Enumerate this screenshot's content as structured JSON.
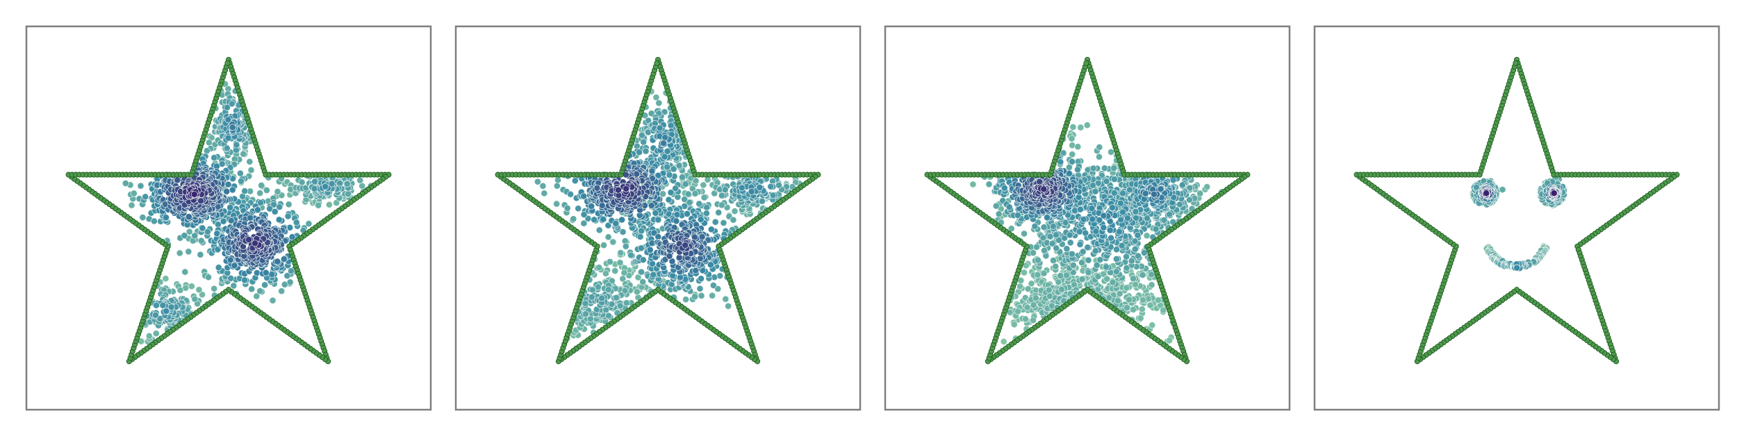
{
  "figure": {
    "panel_count": 4
  },
  "colors": {
    "boundary_fill": "#4f9a4f",
    "boundary_edge": "#1d5a1d",
    "frame": "#7f7f7f",
    "density_low": "#8fd0a6",
    "density_mid": "#3a8aa6",
    "density_high": "#3b1f6e"
  },
  "chart_data": [
    {
      "type": "scatter",
      "title": "",
      "xlabel": "",
      "ylabel": "",
      "xlim": [
        -1.2,
        1.2
      ],
      "ylim": [
        -1.1,
        1.2
      ],
      "grid": false,
      "legend": "none",
      "boundary": {
        "name": "",
        "shape": "five-pointed star",
        "vertices": [
          [
            0,
            1
          ],
          [
            0.22,
            0.31
          ],
          [
            0.95,
            0.31
          ],
          [
            0.36,
            -0.12
          ],
          [
            0.59,
            -0.81
          ],
          [
            0,
            -0.38
          ],
          [
            -0.59,
            -0.81
          ],
          [
            -0.36,
            -0.12
          ],
          [
            -0.95,
            0.31
          ],
          [
            -0.22,
            0.31
          ]
        ]
      },
      "series": [
        {
          "name": "",
          "clusters": [
            {
              "center": [
                -0.21,
                0.2
              ],
              "spread": [
                0.15,
                0.12
              ],
              "count": 460,
              "density": 0.95
            },
            {
              "center": [
                0.16,
                -0.1
              ],
              "spread": [
                0.15,
                0.13
              ],
              "count": 460,
              "density": 0.9
            },
            {
              "center": [
                0.02,
                0.6
              ],
              "spread": [
                0.06,
                0.12
              ],
              "count": 150,
              "density": 0.55
            },
            {
              "center": [
                0.58,
                0.24
              ],
              "spread": [
                0.12,
                0.05
              ],
              "count": 130,
              "density": 0.45
            },
            {
              "center": [
                -0.38,
                -0.5
              ],
              "spread": [
                0.12,
                0.08
              ],
              "count": 140,
              "density": 0.45
            }
          ]
        }
      ]
    },
    {
      "type": "scatter",
      "title": "",
      "xlabel": "",
      "ylabel": "",
      "xlim": [
        -1.2,
        1.2
      ],
      "ylim": [
        -1.1,
        1.2
      ],
      "grid": false,
      "legend": "none",
      "boundary": {
        "name": "",
        "shape": "five-pointed star",
        "vertices": [
          [
            0,
            1
          ],
          [
            0.22,
            0.31
          ],
          [
            0.95,
            0.31
          ],
          [
            0.36,
            -0.12
          ],
          [
            0.59,
            -0.81
          ],
          [
            0,
            -0.38
          ],
          [
            -0.59,
            -0.81
          ],
          [
            -0.36,
            -0.12
          ],
          [
            -0.95,
            0.31
          ],
          [
            -0.22,
            0.31
          ]
        ]
      },
      "series": [
        {
          "name": "",
          "clusters": [
            {
              "center": [
                -0.2,
                0.22
              ],
              "spread": [
                0.17,
                0.13
              ],
              "count": 440,
              "density": 0.9
            },
            {
              "center": [
                0.15,
                -0.12
              ],
              "spread": [
                0.16,
                0.14
              ],
              "count": 420,
              "density": 0.8
            },
            {
              "center": [
                0.03,
                0.5
              ],
              "spread": [
                0.09,
                0.13
              ],
              "count": 180,
              "density": 0.55
            },
            {
              "center": [
                0.56,
                0.22
              ],
              "spread": [
                0.14,
                0.07
              ],
              "count": 160,
              "density": 0.5
            },
            {
              "center": [
                -0.35,
                -0.45
              ],
              "spread": [
                0.16,
                0.12
              ],
              "count": 200,
              "density": 0.35
            }
          ]
        }
      ]
    },
    {
      "type": "scatter",
      "title": "",
      "xlabel": "",
      "ylabel": "",
      "xlim": [
        -1.2,
        1.2
      ],
      "ylim": [
        -1.1,
        1.2
      ],
      "grid": false,
      "legend": "none",
      "boundary": {
        "name": "",
        "shape": "five-pointed star",
        "vertices": [
          [
            0,
            1
          ],
          [
            0.22,
            0.31
          ],
          [
            0.95,
            0.31
          ],
          [
            0.36,
            -0.12
          ],
          [
            0.59,
            -0.81
          ],
          [
            0,
            -0.38
          ],
          [
            -0.59,
            -0.81
          ],
          [
            -0.36,
            -0.12
          ],
          [
            -0.95,
            0.31
          ],
          [
            -0.22,
            0.31
          ]
        ]
      },
      "series": [
        {
          "name": "",
          "clusters": [
            {
              "center": [
                -0.26,
                0.22
              ],
              "spread": [
                0.14,
                0.11
              ],
              "count": 380,
              "density": 0.9
            },
            {
              "center": [
                0.1,
                0.05
              ],
              "spread": [
                0.28,
                0.22
              ],
              "count": 700,
              "density": 0.5
            },
            {
              "center": [
                0.4,
                0.2
              ],
              "spread": [
                0.13,
                0.1
              ],
              "count": 220,
              "density": 0.6
            },
            {
              "center": [
                -0.05,
                -0.45
              ],
              "spread": [
                0.28,
                0.12
              ],
              "count": 360,
              "density": 0.25
            }
          ]
        }
      ]
    },
    {
      "type": "scatter",
      "title": "",
      "xlabel": "",
      "ylabel": "",
      "xlim": [
        -1.2,
        1.2
      ],
      "ylim": [
        -1.1,
        1.2
      ],
      "grid": false,
      "legend": "none",
      "boundary": {
        "name": "",
        "shape": "five-pointed star",
        "vertices": [
          [
            0,
            1
          ],
          [
            0.22,
            0.31
          ],
          [
            0.95,
            0.31
          ],
          [
            0.36,
            -0.12
          ],
          [
            0.59,
            -0.81
          ],
          [
            0,
            -0.38
          ],
          [
            -0.59,
            -0.81
          ],
          [
            -0.36,
            -0.12
          ],
          [
            -0.95,
            0.31
          ],
          [
            -0.22,
            0.31
          ]
        ]
      },
      "series": [
        {
          "name": "",
          "clusters": [
            {
              "center": [
                -0.18,
                0.2
              ],
              "spread": [
                0.025,
                0.025
              ],
              "count": 90,
              "density": 1.0
            },
            {
              "center": [
                0.22,
                0.2
              ],
              "spread": [
                0.025,
                0.025
              ],
              "count": 90,
              "density": 1.0
            }
          ],
          "rings": [
            {
              "center": [
                -0.19,
                0.2
              ],
              "radius": 0.065,
              "count": 80,
              "density": 0.3
            },
            {
              "center": [
                0.21,
                0.2
              ],
              "radius": 0.065,
              "count": 80,
              "density": 0.3
            }
          ],
          "arcs": [
            {
              "center": [
                0.0,
                -0.06
              ],
              "radius": 0.18,
              "start_deg": 200,
              "end_deg": 340,
              "count": 130,
              "density": 0.35
            }
          ]
        }
      ]
    }
  ]
}
